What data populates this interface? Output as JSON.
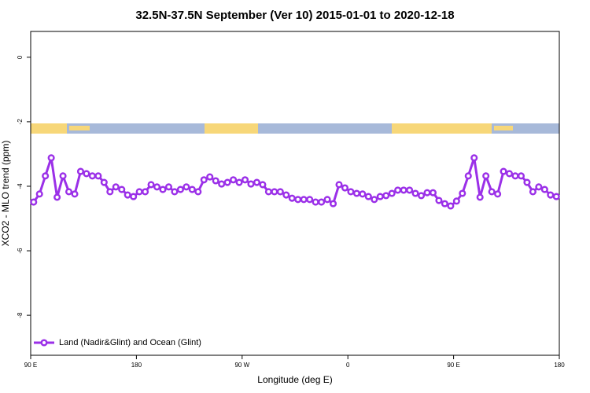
{
  "chart_data": {
    "type": "line",
    "title": "32.5N-37.5N September (Ver 10)   2015-01-01 to 2020-12-18",
    "x_label": "Longitude (deg E)",
    "y_label": "XCO2 - MLO trend (ppm)",
    "xlim": [
      90,
      540
    ],
    "ylim": [
      -9.24,
      0.8
    ],
    "xticks": [
      {
        "value": 90,
        "label": "90 E"
      },
      {
        "value": 180,
        "label": "180"
      },
      {
        "value": 270,
        "label": "90 W"
      },
      {
        "value": 360,
        "label": "0"
      },
      {
        "value": 450,
        "label": "90 E"
      },
      {
        "value": 540,
        "label": "180"
      }
    ],
    "yticks": [
      0,
      -2,
      -4,
      -6,
      -8
    ],
    "legend_position": "bottom-left",
    "x": [
      92.5,
      97.5,
      102.5,
      107.5,
      112.5,
      117.5,
      122.5,
      127.5,
      132.5,
      137.5,
      142.5,
      147.5,
      152.5,
      157.5,
      162.5,
      167.5,
      172.5,
      177.5,
      182.5,
      187.5,
      192.5,
      197.5,
      202.5,
      207.5,
      212.5,
      217.5,
      222.5,
      227.5,
      232.5,
      237.5,
      242.5,
      247.5,
      252.5,
      257.5,
      262.5,
      267.5,
      272.5,
      277.5,
      282.5,
      287.5,
      292.5,
      297.5,
      302.5,
      307.5,
      312.5,
      317.5,
      322.5,
      327.5,
      332.5,
      337.5,
      342.5,
      347.5,
      352.5,
      357.5,
      362.5,
      367.5,
      372.5,
      377.5,
      382.5,
      387.5,
      392.5,
      397.5,
      402.5,
      407.5,
      412.5,
      417.5,
      422.5,
      427.5,
      432.5,
      437.5,
      442.5,
      447.5,
      452.5,
      457.5,
      462.5,
      467.5,
      472.5,
      477.5,
      482.5,
      487.5,
      492.5,
      497.5,
      502.5,
      507.5,
      512.5,
      517.5,
      522.5,
      527.5,
      532.5,
      537.5
    ],
    "series": [
      {
        "name": "Land (Nadir&Glint) and Ocean (Glint)",
        "color": "#9b30e8",
        "values": [
          -4.49,
          -4.24,
          -3.68,
          -3.12,
          -4.34,
          -3.68,
          -4.17,
          -4.24,
          -3.54,
          -3.61,
          -3.68,
          -3.68,
          -3.88,
          -4.17,
          -4.02,
          -4.1,
          -4.27,
          -4.32,
          -4.17,
          -4.17,
          -3.95,
          -4.02,
          -4.1,
          -4.02,
          -4.17,
          -4.1,
          -4.02,
          -4.1,
          -4.17,
          -3.8,
          -3.71,
          -3.83,
          -3.93,
          -3.88,
          -3.8,
          -3.88,
          -3.8,
          -3.93,
          -3.88,
          -3.95,
          -4.17,
          -4.17,
          -4.17,
          -4.27,
          -4.37,
          -4.41,
          -4.41,
          -4.41,
          -4.49,
          -4.49,
          -4.41,
          -4.54,
          -3.95,
          -4.05,
          -4.17,
          -4.22,
          -4.24,
          -4.32,
          -4.41,
          -4.32,
          -4.29,
          -4.22,
          -4.12,
          -4.12,
          -4.12,
          -4.22,
          -4.29,
          -4.2,
          -4.2,
          -4.44,
          -4.54,
          -4.61,
          -4.46,
          -4.22,
          -3.68,
          -3.12,
          -4.34,
          -3.68,
          -4.17,
          -4.24,
          -3.54,
          -3.61,
          -3.68,
          -3.68,
          -3.88,
          -4.17,
          -4.02,
          -4.1,
          -4.27,
          -4.32
        ]
      }
    ]
  }
}
